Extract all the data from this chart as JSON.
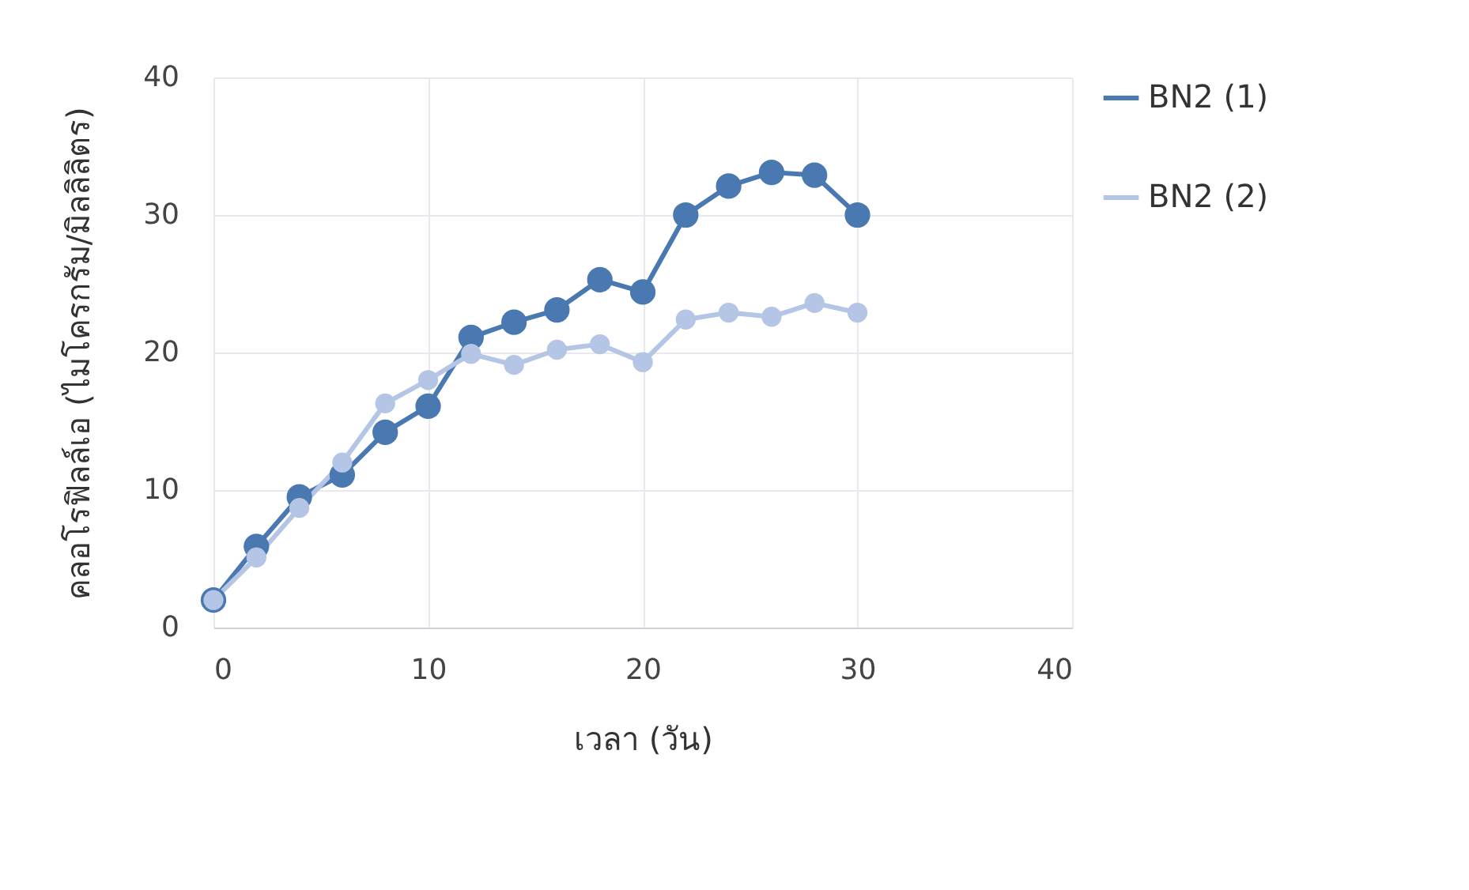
{
  "chart_data": {
    "type": "line",
    "xlabel": "เวลา (วัน)",
    "ylabel": "คลอโรฟิลล์เอ (ไมโครกรัม/มิลลิลิตร)",
    "x": [
      0,
      2,
      4,
      6,
      8,
      10,
      12,
      14,
      16,
      18,
      20,
      22,
      24,
      26,
      28,
      30
    ],
    "series": [
      {
        "name": "BN2 (1)",
        "color": "#4a78b0",
        "values": [
          2.0,
          5.9,
          9.5,
          11.1,
          14.2,
          16.1,
          21.1,
          22.2,
          23.1,
          25.3,
          24.4,
          30.0,
          32.1,
          33.1,
          32.9,
          30.0
        ]
      },
      {
        "name": "BN2 (2)",
        "color": "#b4c5e6",
        "values": [
          2.0,
          5.1,
          8.7,
          12.0,
          16.3,
          18.0,
          19.9,
          19.1,
          20.2,
          20.6,
          19.3,
          22.4,
          22.9,
          22.6,
          23.6,
          22.9
        ]
      }
    ],
    "xlim": [
      0,
      40
    ],
    "xticks": [
      0,
      10,
      20,
      30,
      40
    ],
    "ylim": [
      0,
      40
    ],
    "yticks": [
      0,
      10,
      20,
      30,
      40
    ],
    "grid": true,
    "legend": "right",
    "marker": "circle",
    "line_style": "solid"
  }
}
